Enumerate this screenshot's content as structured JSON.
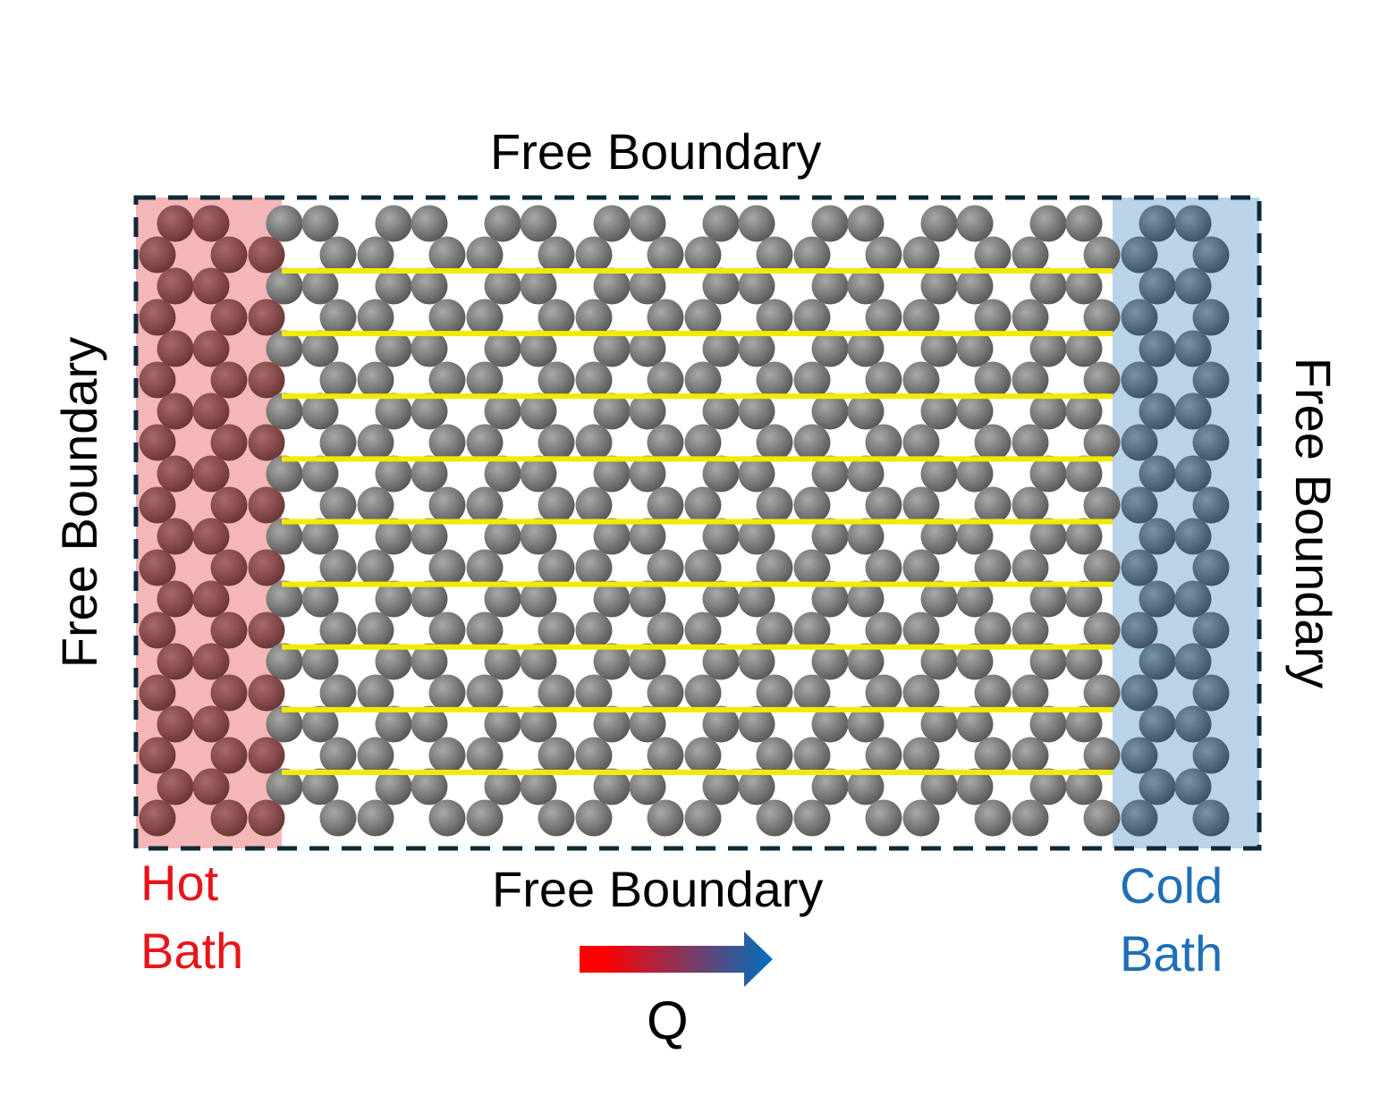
{
  "labels": {
    "top": "Free Boundary",
    "bottom": "Free Boundary",
    "left": "Free Boundary",
    "right": "Free Boundary",
    "hot_bath": "Hot\nBath",
    "cold_bath": "Cold\nBath",
    "heat_flow": "Q"
  },
  "colors": {
    "hot_bath_fill": "#f4b6b6",
    "cold_bath_fill": "#b9d3e8",
    "hot_text": "#e8141a",
    "cold_text": "#1f6fb7",
    "atom": "#7a7a7a",
    "atom_hot": "#8b4a4a",
    "atom_cold": "#4e6a80",
    "stripe": "#f2ea00",
    "frame": "#0e2a38",
    "arrow_start": "#ff0000",
    "arrow_end": "#0070c0"
  },
  "structure": {
    "stripe_count": 9,
    "boundary_style": "dashed",
    "heat_flow_direction": "left-to-right"
  }
}
